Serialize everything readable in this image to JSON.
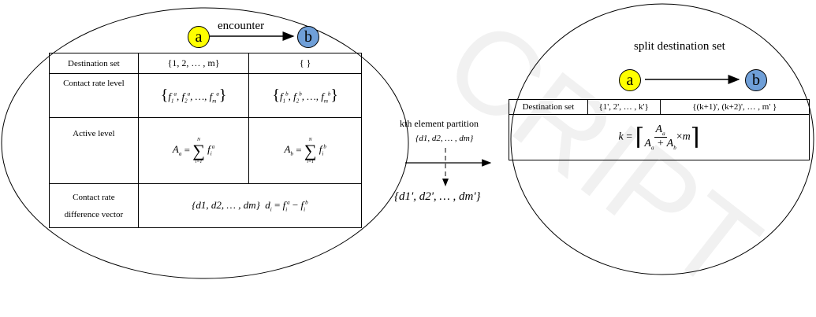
{
  "left": {
    "node_a": "a",
    "node_b": "b",
    "edge_label": "encounter",
    "table": {
      "row1": {
        "label": "Destination set",
        "a": "{1, 2, … , m}",
        "b": "{ }"
      },
      "row2": {
        "label": "Contact rate level"
      },
      "row3": {
        "label": "Active level"
      },
      "row4": {
        "label_line1": "Contact rate",
        "label_line2": "difference vector",
        "value": "{d1, d2, … , dm}"
      }
    }
  },
  "middle": {
    "partition_line1": "kth element partition",
    "partition_set": "{d1, d2, … , dm}",
    "result_set": "{d1', d2', … , dm'}"
  },
  "right": {
    "title": "split destination set",
    "node_a": "a",
    "node_b": "b",
    "table": {
      "label": "Destination set",
      "a": "{1', 2', … , k'}",
      "b": "{(k+1)', (k+2)', … , m' }"
    }
  },
  "colors": {
    "node_a": "#ffff00",
    "node_b": "#6f9fd8"
  },
  "watermark": "CRIPT"
}
